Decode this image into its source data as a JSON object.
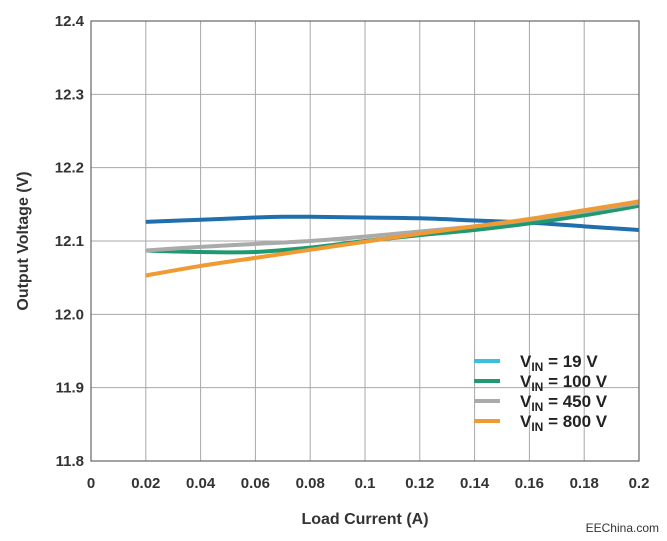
{
  "chart_data": {
    "type": "line",
    "title": "",
    "xlabel": "Load Current (A)",
    "ylabel": "Output Voltage (V)",
    "xlim": [
      0,
      0.2
    ],
    "ylim": [
      11.8,
      12.4
    ],
    "x_ticks": [
      0,
      0.02,
      0.04,
      0.06,
      0.08,
      0.1,
      0.12,
      0.14,
      0.16,
      0.18,
      0.2
    ],
    "x_tick_labels": [
      "0",
      "0.02",
      "0.04",
      "0.06",
      "0.08",
      "0.1",
      "0.12",
      "0.14",
      "0.16",
      "0.18",
      "0.2"
    ],
    "y_ticks": [
      11.8,
      11.9,
      12.0,
      12.1,
      12.2,
      12.3,
      12.4
    ],
    "y_tick_labels": [
      "11.8",
      "11.9",
      "12.0",
      "12.1",
      "12.2",
      "12.3",
      "12.4"
    ],
    "grid": true,
    "legend_position": "bottom-right",
    "series": [
      {
        "name": "VIN = 19 V",
        "legend_prefix": "V",
        "legend_sub": "IN",
        "legend_suffix": " = 19 V",
        "color": "#1f6fae",
        "legend_color": "#3bbfe0",
        "x": [
          0.02,
          0.04,
          0.06,
          0.07,
          0.08,
          0.1,
          0.12,
          0.14,
          0.16,
          0.18,
          0.2
        ],
        "y": [
          12.126,
          12.129,
          12.132,
          12.133,
          12.133,
          12.132,
          12.131,
          12.128,
          12.125,
          12.12,
          12.115
        ]
      },
      {
        "name": "VIN = 100 V",
        "legend_prefix": "V",
        "legend_sub": "IN",
        "legend_suffix": " = 100 V",
        "color": "#1f9a6e",
        "legend_color": "#1f9a6e",
        "x": [
          0.02,
          0.04,
          0.06,
          0.08,
          0.1,
          0.12,
          0.14,
          0.16,
          0.18,
          0.2
        ],
        "y": [
          12.087,
          12.085,
          12.085,
          12.091,
          12.1,
          12.108,
          12.115,
          12.124,
          12.135,
          12.148
        ]
      },
      {
        "name": "VIN = 450 V",
        "legend_prefix": "V",
        "legend_sub": "IN",
        "legend_suffix": " = 450 V",
        "color": "#aaaaaa",
        "legend_color": "#aaaaaa",
        "x": [
          0.02,
          0.04,
          0.06,
          0.08,
          0.1,
          0.12,
          0.14,
          0.16,
          0.18,
          0.2
        ],
        "y": [
          12.087,
          12.092,
          12.096,
          12.1,
          12.106,
          12.113,
          12.12,
          12.129,
          12.14,
          12.152
        ]
      },
      {
        "name": "VIN = 800 V",
        "legend_prefix": "V",
        "legend_sub": "IN",
        "legend_suffix": " = 800 V",
        "color": "#ef9a33",
        "legend_color": "#ef9a33",
        "x": [
          0.02,
          0.04,
          0.06,
          0.08,
          0.1,
          0.12,
          0.14,
          0.16,
          0.18,
          0.2
        ],
        "y": [
          12.053,
          12.066,
          12.077,
          12.088,
          12.099,
          12.11,
          12.12,
          12.13,
          12.142,
          12.154
        ]
      }
    ],
    "watermark": "EEChina.com"
  }
}
